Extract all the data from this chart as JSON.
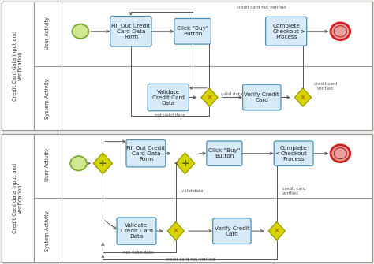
{
  "bg_color": "#eeeeea",
  "border_color": "#999999",
  "box_fill": "#d6eaf8",
  "box_border": "#4a90b8",
  "diamond_fill": "#d4d400",
  "diamond_border": "#999900",
  "start_fill": "#d0e890",
  "start_border": "#7aaa30",
  "end_fill": "#e8a0a0",
  "end_border": "#cc2222",
  "text_color": "#222222",
  "label_color": "#555555",
  "arrow_color": "#555555",
  "lane_label_color": "#333333",
  "title1": "Credit Card data input and\nverification",
  "title2": "Credit Card data input and\nverification'",
  "user_label": "User Activity",
  "system_label": "System Activity"
}
